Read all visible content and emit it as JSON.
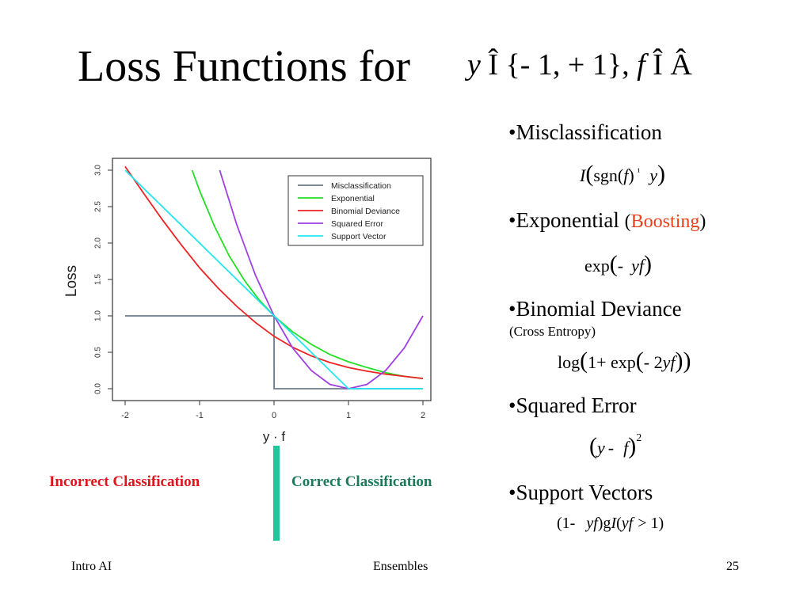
{
  "title": "Loss Functions for",
  "title_math": {
    "y": "y",
    "in1": "Î",
    "set": "{- 1, + 1},",
    "f": "f",
    "in2": "Î",
    "R": "Â"
  },
  "bullets": [
    {
      "label": "•Misclassification",
      "formula": [
        "I",
        "(",
        "sgn",
        "(",
        "f",
        ")",
        "¹",
        "y",
        ")"
      ]
    },
    {
      "label": "•Exponential",
      "paren_open": "(",
      "highlight": "Boosting",
      "paren_close": ")",
      "formula": [
        "exp",
        "(",
        "-",
        "yf",
        ")"
      ]
    },
    {
      "label": "•Binomial Deviance",
      "sub": "(Cross Entropy)",
      "formula": [
        "log",
        "(",
        "1+ exp",
        "(",
        "- 2",
        "yf",
        ")",
        ")"
      ]
    },
    {
      "label": "•Squared Error",
      "formula": [
        "(",
        "y",
        "-",
        "f",
        ")",
        "2"
      ]
    },
    {
      "label": "•Support Vectors",
      "formula": [
        "(1-",
        "yf",
        ")g",
        "I",
        "(",
        "yf",
        "> 1)"
      ]
    }
  ],
  "incorrect_label": "Incorrect Classification",
  "correct_label": "Correct Classification",
  "footer": {
    "left": "Intro AI",
    "center": "Ensembles",
    "right": "25"
  },
  "colors": {
    "misclassification": "#6b7b8c",
    "exponential": "#22e022",
    "binomial": "#ee2222",
    "squared": "#a040e0",
    "support": "#22e6f0",
    "incorrect": "#e0141c",
    "correct": "#1a7a5a",
    "divider": "#1fc79a",
    "boosting": "#e8401c"
  },
  "chart_data": {
    "type": "line",
    "xlabel": "y · f",
    "ylabel": "Loss",
    "xlim": [
      -2,
      2
    ],
    "ylim": [
      0,
      3
    ],
    "xticks": [
      "-2",
      "-1",
      "0",
      "1",
      "2"
    ],
    "yticks": [
      "0.0",
      "0.5",
      "1.0",
      "1.5",
      "2.0",
      "2.5",
      "3.0"
    ],
    "legend_position": "top-right",
    "series": [
      {
        "name": "Misclassification",
        "color": "#6b7b8c",
        "x": [
          -2,
          -0.001,
          0,
          0.001,
          2
        ],
        "y": [
          1,
          1,
          1,
          0,
          0
        ]
      },
      {
        "name": "Exponential",
        "color": "#22e022",
        "x": [
          -1.1,
          -1.0,
          -0.8,
          -0.6,
          -0.4,
          -0.2,
          0,
          0.25,
          0.5,
          0.75,
          1.0,
          1.25,
          1.5,
          1.75,
          2.0
        ],
        "y": [
          3.0,
          2.72,
          2.23,
          1.82,
          1.49,
          1.22,
          1.0,
          0.78,
          0.61,
          0.47,
          0.37,
          0.29,
          0.22,
          0.17,
          0.14
        ]
      },
      {
        "name": "Binomial Deviance",
        "color": "#ee2222",
        "x": [
          -2.0,
          -1.75,
          -1.5,
          -1.25,
          -1.0,
          -0.75,
          -0.5,
          -0.25,
          0,
          0.25,
          0.5,
          0.75,
          1.0,
          1.25,
          1.5,
          1.75,
          2.0
        ],
        "y": [
          3.05,
          2.68,
          2.32,
          1.98,
          1.66,
          1.38,
          1.13,
          0.91,
          0.72,
          0.57,
          0.45,
          0.36,
          0.29,
          0.24,
          0.2,
          0.17,
          0.14
        ]
      },
      {
        "name": "Squared Error",
        "color": "#a040e0",
        "x": [
          -0.73,
          -0.5,
          -0.25,
          0,
          0.25,
          0.5,
          0.75,
          1.0,
          1.25,
          1.5,
          1.75,
          2.0
        ],
        "y": [
          3.0,
          2.25,
          1.56,
          1.0,
          0.56,
          0.25,
          0.06,
          0.0,
          0.06,
          0.25,
          0.56,
          1.0
        ]
      },
      {
        "name": "Support Vector",
        "color": "#22e6f0",
        "x": [
          -2.0,
          1.0,
          2.0
        ],
        "y": [
          3.0,
          0.0,
          0.0
        ]
      }
    ]
  }
}
